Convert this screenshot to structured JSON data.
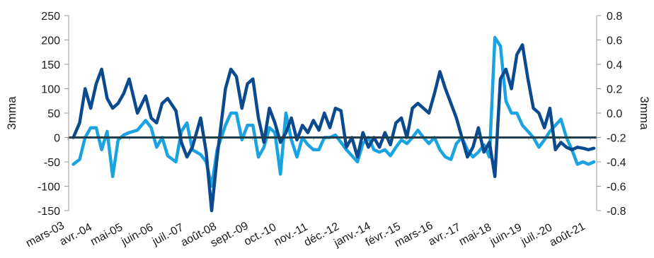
{
  "chart_data": {
    "type": "line",
    "x_labels": [
      "mars-03",
      "avr.-04",
      "mai-05",
      "juin-06",
      "juil.-07",
      "août-08",
      "sept.-09",
      "oct.-10",
      "nov.-11",
      "déc.-12",
      "janv.-14",
      "févr.-15",
      "mars-16",
      "avr.-17",
      "mai-18",
      "juin-19",
      "juil.-20",
      "août-21"
    ],
    "y_left": {
      "label": "3mma",
      "ticks": [
        "250",
        "200",
        "150",
        "100",
        "50",
        "0",
        "-50",
        "-100",
        "-150"
      ],
      "range": [
        -150,
        250
      ]
    },
    "y_right": {
      "label": "3mma",
      "ticks": [
        "0.8",
        "0.6",
        "0.4",
        "0.2",
        "0.0",
        "-0.2",
        "-0.4",
        "-0.6",
        "-0.8"
      ],
      "range": [
        -0.8,
        0.8
      ]
    },
    "grid": false,
    "legend": "none",
    "series": [
      {
        "axis": "left",
        "color": "#0b4a8f",
        "x": [
          2003.17,
          2003.4,
          2003.6,
          2003.8,
          2004.0,
          2004.2,
          2004.4,
          2004.6,
          2004.8,
          2005.0,
          2005.2,
          2005.5,
          2005.8,
          2006.0,
          2006.2,
          2006.4,
          2006.6,
          2006.9,
          2007.1,
          2007.3,
          2007.5,
          2007.8,
          2008.0,
          2008.2,
          2008.4,
          2008.7,
          2008.9,
          2009.1,
          2009.3,
          2009.5,
          2009.7,
          2009.9,
          2010.1,
          2010.3,
          2010.5,
          2010.7,
          2010.9,
          2011.1,
          2011.3,
          2011.5,
          2011.7,
          2011.9,
          2012.1,
          2012.3,
          2012.5,
          2012.7,
          2012.9,
          2013.1,
          2013.3,
          2013.5,
          2013.7,
          2013.9,
          2014.1,
          2014.3,
          2014.5,
          2014.7,
          2014.9,
          2015.1,
          2015.3,
          2015.5,
          2015.7,
          2015.9,
          2016.1,
          2016.3,
          2016.5,
          2016.7,
          2016.9,
          2017.1,
          2017.3,
          2017.5,
          2017.7,
          2017.9,
          2018.1,
          2018.3,
          2018.5,
          2018.7,
          2018.9,
          2019.1,
          2019.3,
          2019.5,
          2019.7,
          2019.9,
          2020.1,
          2020.3,
          2020.5,
          2020.7,
          2020.9,
          2021.1,
          2021.3,
          2021.5,
          2021.7,
          2021.9,
          2022.1
        ],
        "y": [
          0,
          30,
          100,
          60,
          110,
          140,
          80,
          60,
          70,
          90,
          120,
          50,
          85,
          40,
          30,
          70,
          80,
          55,
          -10,
          -40,
          -20,
          40,
          -30,
          -150,
          -40,
          100,
          140,
          125,
          60,
          110,
          120,
          40,
          -10,
          60,
          30,
          -10,
          10,
          40,
          -5,
          25,
          10,
          35,
          15,
          50,
          20,
          60,
          55,
          -20,
          0,
          -40,
          10,
          -20,
          0,
          -20,
          10,
          -15,
          30,
          40,
          0,
          60,
          70,
          60,
          50,
          90,
          135,
          100,
          70,
          40,
          0,
          -40,
          -20,
          20,
          -30,
          -10,
          -80,
          120,
          140,
          100,
          170,
          190,
          120,
          60,
          50,
          20,
          60,
          -25,
          -10,
          -20,
          -25,
          -20,
          -22,
          -25,
          -22
        ]
      },
      {
        "axis": "right",
        "color": "#1aa3e0",
        "x": [
          2003.17,
          2003.4,
          2003.6,
          2003.8,
          2004.0,
          2004.2,
          2004.4,
          2004.6,
          2004.8,
          2005.0,
          2005.2,
          2005.5,
          2005.8,
          2006.0,
          2006.2,
          2006.4,
          2006.6,
          2006.9,
          2007.1,
          2007.3,
          2007.5,
          2007.8,
          2008.0,
          2008.2,
          2008.4,
          2008.7,
          2008.9,
          2009.1,
          2009.3,
          2009.5,
          2009.7,
          2009.9,
          2010.1,
          2010.3,
          2010.5,
          2010.7,
          2010.9,
          2011.1,
          2011.3,
          2011.5,
          2011.7,
          2011.9,
          2012.1,
          2012.3,
          2012.5,
          2012.7,
          2012.9,
          2013.1,
          2013.3,
          2013.5,
          2013.7,
          2013.9,
          2014.1,
          2014.3,
          2014.5,
          2014.7,
          2014.9,
          2015.1,
          2015.3,
          2015.5,
          2015.7,
          2015.9,
          2016.1,
          2016.3,
          2016.5,
          2016.7,
          2016.9,
          2017.1,
          2017.3,
          2017.5,
          2017.7,
          2017.9,
          2018.1,
          2018.3,
          2018.5,
          2018.7,
          2018.9,
          2019.1,
          2019.3,
          2019.5,
          2019.7,
          2019.9,
          2020.1,
          2020.3,
          2020.5,
          2020.7,
          2020.9,
          2021.1,
          2021.3,
          2021.5,
          2021.7,
          2021.9,
          2022.1
        ],
        "y": [
          -0.42,
          -0.38,
          -0.2,
          -0.12,
          -0.12,
          -0.3,
          -0.15,
          -0.52,
          -0.22,
          -0.18,
          -0.16,
          -0.14,
          -0.06,
          -0.12,
          -0.28,
          -0.2,
          -0.35,
          -0.4,
          -0.15,
          -0.08,
          -0.3,
          -0.34,
          -0.4,
          -0.6,
          -0.3,
          -0.1,
          0.0,
          0.0,
          -0.22,
          -0.1,
          -0.1,
          -0.36,
          -0.28,
          -0.12,
          -0.16,
          -0.5,
          0.0,
          -0.22,
          -0.36,
          -0.2,
          -0.26,
          -0.3,
          -0.3,
          -0.2,
          -0.2,
          -0.18,
          -0.24,
          -0.3,
          -0.35,
          -0.4,
          -0.25,
          -0.2,
          -0.3,
          -0.32,
          -0.3,
          -0.35,
          -0.28,
          -0.22,
          -0.25,
          -0.2,
          -0.14,
          -0.2,
          -0.25,
          -0.2,
          -0.3,
          -0.36,
          -0.38,
          -0.25,
          -0.2,
          -0.3,
          -0.36,
          -0.32,
          -0.26,
          -0.36,
          0.62,
          0.55,
          0.1,
          0.0,
          0.0,
          -0.1,
          -0.15,
          -0.2,
          -0.28,
          -0.22,
          -0.15,
          -0.1,
          -0.05,
          -0.2,
          -0.3,
          -0.42,
          -0.4,
          -0.42,
          -0.4
        ]
      }
    ]
  }
}
